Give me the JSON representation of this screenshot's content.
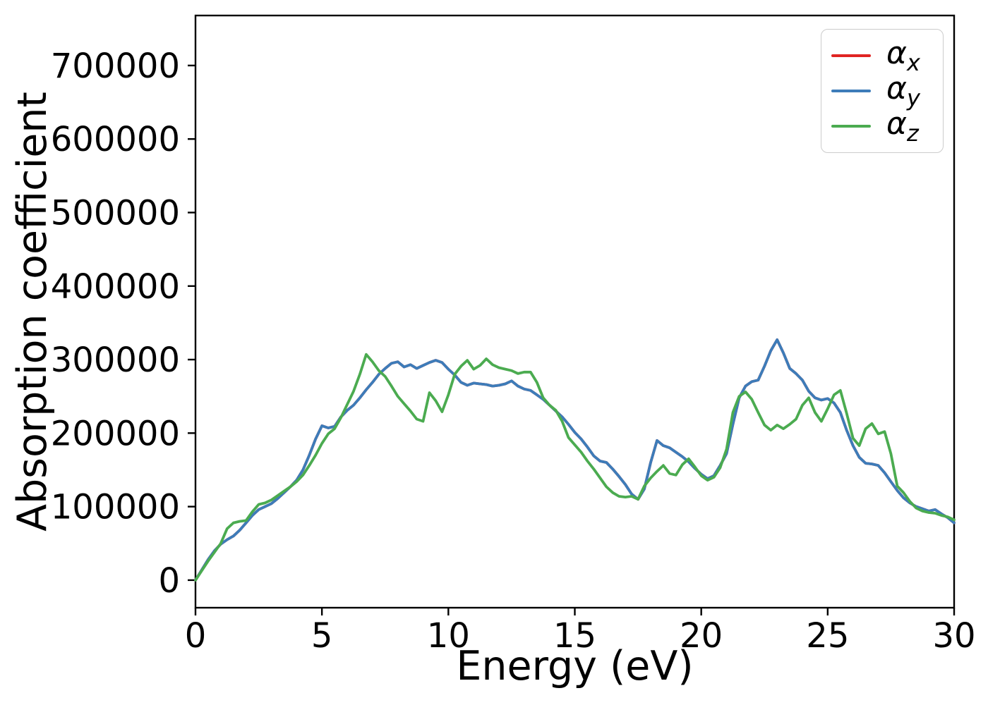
{
  "figure": {
    "background_color": "#ffffff"
  },
  "chart_data": {
    "type": "line",
    "xlabel": "Energy (eV)",
    "ylabel": "Absorption coefficient",
    "xlim": [
      0,
      30
    ],
    "ylim": [
      -37500,
      768000
    ],
    "xticks": [
      0,
      5,
      10,
      15,
      20,
      25,
      30
    ],
    "yticks": [
      0,
      100000,
      200000,
      300000,
      400000,
      500000,
      600000,
      700000
    ],
    "grid": false,
    "legend": {
      "location": "upper right",
      "labels": [
        "αx",
        "αy",
        "αz"
      ],
      "border_color": "#cccccc"
    },
    "axis_color": "#000000",
    "x": [
      0,
      0.25,
      0.5,
      0.75,
      1,
      1.25,
      1.5,
      1.75,
      2,
      2.25,
      2.5,
      2.75,
      3,
      3.25,
      3.5,
      3.75,
      4,
      4.25,
      4.5,
      4.75,
      5,
      5.25,
      5.5,
      5.75,
      6,
      6.25,
      6.5,
      6.75,
      7,
      7.25,
      7.5,
      7.75,
      8,
      8.25,
      8.5,
      8.75,
      9,
      9.25,
      9.5,
      9.75,
      10,
      10.25,
      10.5,
      10.75,
      11,
      11.25,
      11.5,
      11.75,
      12,
      12.25,
      12.5,
      12.75,
      13,
      13.25,
      13.5,
      13.75,
      14,
      14.25,
      14.5,
      14.75,
      15,
      15.25,
      15.5,
      15.75,
      16,
      16.25,
      16.5,
      16.75,
      17,
      17.25,
      17.5,
      17.75,
      18,
      18.25,
      18.5,
      18.75,
      19,
      19.25,
      19.5,
      19.75,
      20,
      20.25,
      20.5,
      20.75,
      21,
      21.25,
      21.5,
      21.75,
      22,
      22.25,
      22.5,
      22.75,
      23,
      23.25,
      23.5,
      23.75,
      24,
      24.25,
      24.5,
      24.75,
      25,
      25.25,
      25.5,
      25.75,
      26,
      26.25,
      26.5,
      26.75,
      27,
      27.25,
      27.5,
      27.75,
      28,
      28.25,
      28.5,
      28.75,
      29,
      29.25,
      29.5,
      29.75,
      30
    ],
    "series": [
      {
        "name": "αx",
        "base": "α",
        "sub": "x",
        "color": "#e02422",
        "values": [
          0,
          14000,
          28000,
          40000,
          49000,
          55000,
          60000,
          68000,
          78000,
          88000,
          96000,
          100000,
          104000,
          111000,
          119000,
          127000,
          136000,
          150000,
          170000,
          192000,
          210000,
          207000,
          209000,
          222000,
          231000,
          238000,
          248000,
          259000,
          269000,
          280000,
          288000,
          295000,
          297000,
          290000,
          293000,
          288000,
          292000,
          296000,
          299000,
          296000,
          287000,
          279000,
          269000,
          265000,
          268000,
          267000,
          266000,
          264000,
          265000,
          267000,
          271000,
          264000,
          260000,
          258000,
          252000,
          246000,
          238000,
          230000,
          222000,
          212000,
          201000,
          192000,
          181000,
          169000,
          162000,
          160000,
          151000,
          141000,
          130000,
          117000,
          110000,
          124000,
          160000,
          190000,
          183000,
          180000,
          174000,
          168000,
          161000,
          152000,
          144000,
          138000,
          142000,
          156000,
          172000,
          212000,
          248000,
          264000,
          270000,
          272000,
          291000,
          312000,
          327000,
          309000,
          288000,
          281000,
          272000,
          257000,
          248000,
          245000,
          247000,
          241000,
          228000,
          204000,
          183000,
          167000,
          159000,
          158000,
          156000,
          146000,
          134000,
          122000,
          112000,
          105000,
          100000,
          97000,
          94000,
          96000,
          90000,
          85000,
          78000
        ]
      },
      {
        "name": "αy",
        "base": "α",
        "sub": "y",
        "color": "#3d7cb9",
        "values": [
          0,
          14000,
          28000,
          40000,
          49000,
          55000,
          60000,
          68000,
          78000,
          88000,
          96000,
          100000,
          104000,
          111000,
          119000,
          127000,
          136000,
          150000,
          170000,
          192000,
          210000,
          207000,
          209000,
          222000,
          231000,
          238000,
          248000,
          259000,
          269000,
          280000,
          288000,
          295000,
          297000,
          290000,
          293000,
          288000,
          292000,
          296000,
          299000,
          296000,
          287000,
          279000,
          269000,
          265000,
          268000,
          267000,
          266000,
          264000,
          265000,
          267000,
          271000,
          264000,
          260000,
          258000,
          252000,
          246000,
          238000,
          230000,
          222000,
          212000,
          201000,
          192000,
          181000,
          169000,
          162000,
          160000,
          151000,
          141000,
          130000,
          117000,
          110000,
          124000,
          160000,
          190000,
          183000,
          180000,
          174000,
          168000,
          161000,
          152000,
          144000,
          138000,
          142000,
          156000,
          172000,
          212000,
          248000,
          264000,
          270000,
          272000,
          291000,
          312000,
          327000,
          309000,
          288000,
          281000,
          272000,
          257000,
          248000,
          245000,
          247000,
          241000,
          228000,
          204000,
          183000,
          167000,
          159000,
          158000,
          156000,
          146000,
          134000,
          122000,
          112000,
          105000,
          100000,
          97000,
          94000,
          96000,
          90000,
          85000,
          78000
        ]
      },
      {
        "name": "αz",
        "base": "α",
        "sub": "z",
        "color": "#4bab50",
        "values": [
          0,
          13000,
          26000,
          38000,
          50000,
          70000,
          78000,
          80000,
          81000,
          93000,
          103000,
          105000,
          109000,
          115000,
          121000,
          127000,
          134000,
          143000,
          156000,
          170000,
          186000,
          199000,
          206000,
          221000,
          239000,
          257000,
          280000,
          307000,
          297000,
          285000,
          277000,
          264000,
          250000,
          240000,
          230000,
          219000,
          216000,
          255000,
          244000,
          229000,
          252000,
          280000,
          291000,
          299000,
          287000,
          292000,
          301000,
          293000,
          289000,
          287000,
          285000,
          281000,
          283000,
          283000,
          269000,
          248000,
          238000,
          231000,
          216000,
          194000,
          184000,
          174000,
          162000,
          151000,
          139000,
          127000,
          119000,
          114000,
          113000,
          114000,
          110000,
          128000,
          139000,
          148000,
          156000,
          145000,
          143000,
          157000,
          165000,
          154000,
          142000,
          136000,
          140000,
          153000,
          178000,
          228000,
          250000,
          256000,
          246000,
          228000,
          211000,
          204000,
          211000,
          206000,
          212000,
          219000,
          238000,
          248000,
          228000,
          216000,
          233000,
          252000,
          258000,
          227000,
          193000,
          183000,
          206000,
          213000,
          199000,
          202000,
          172000,
          128000,
          119000,
          107000,
          98000,
          94000,
          92000,
          91000,
          88000,
          86000,
          82000
        ]
      }
    ]
  }
}
